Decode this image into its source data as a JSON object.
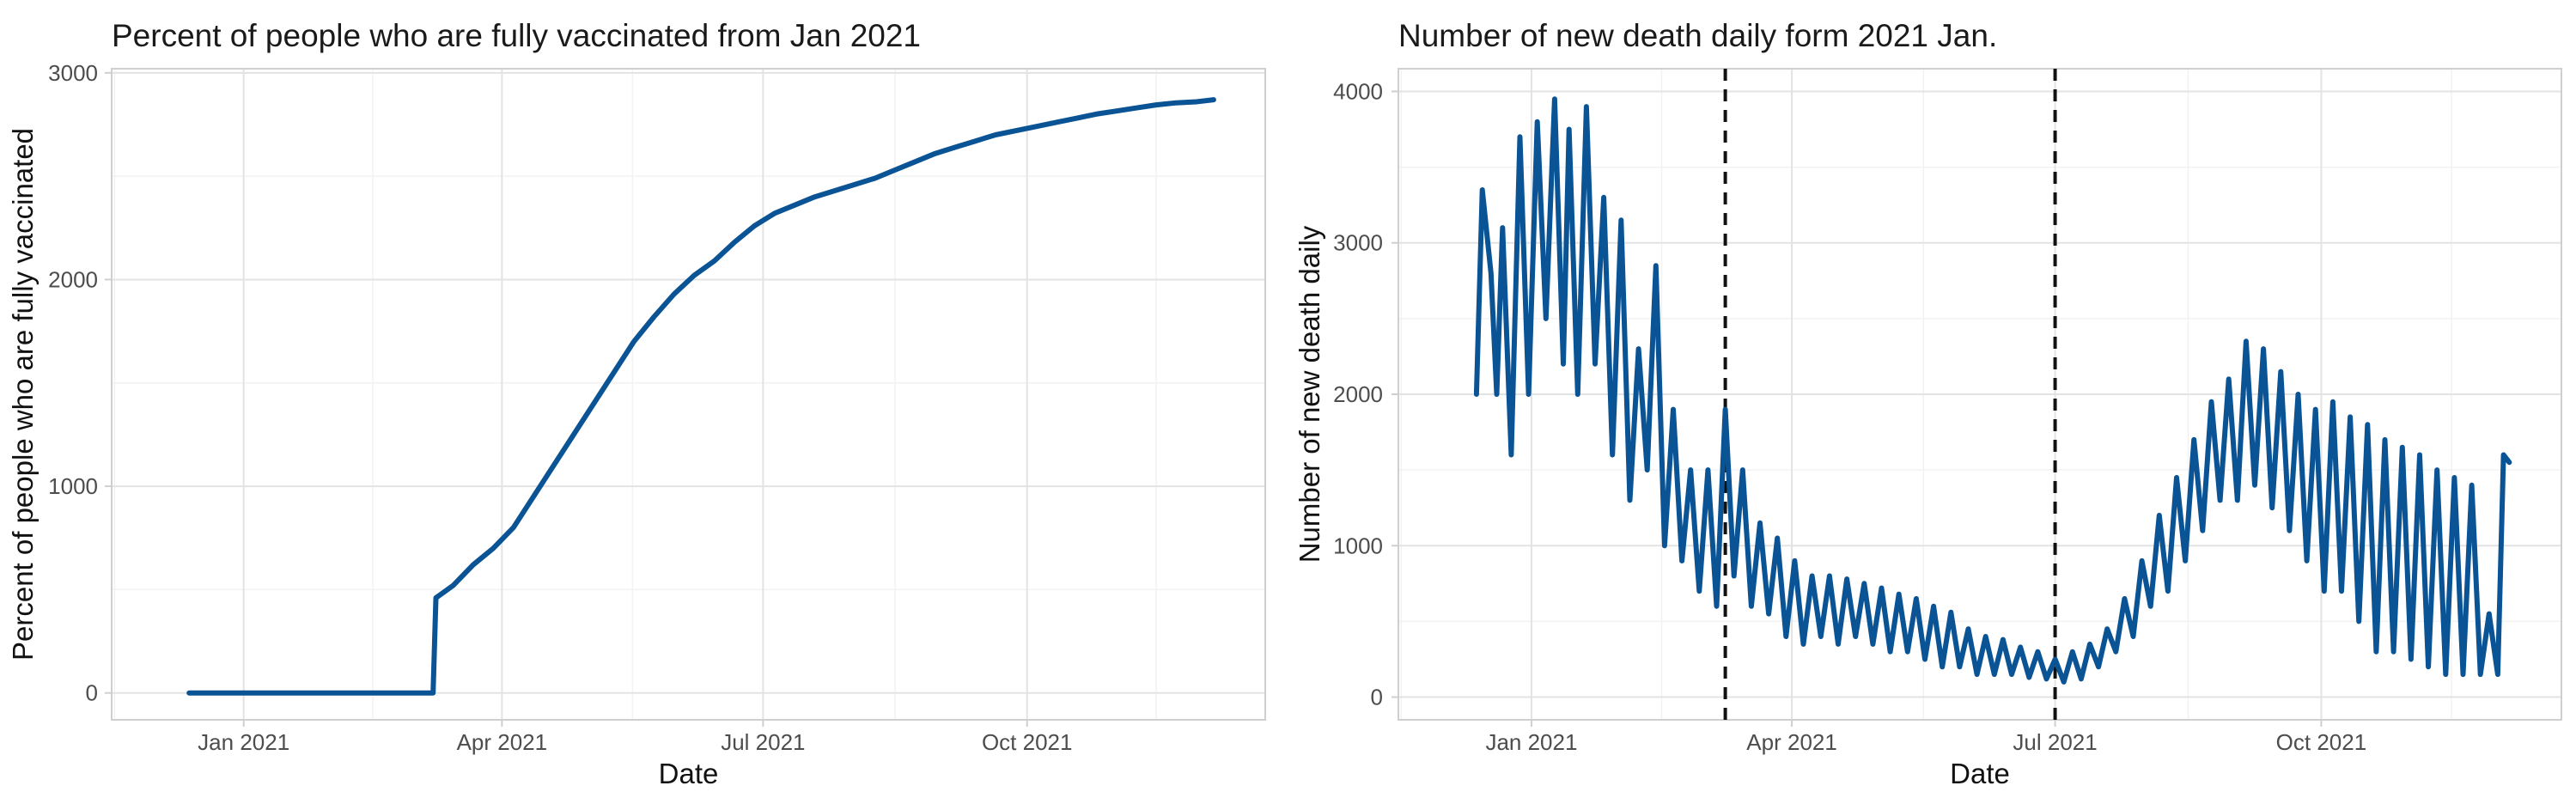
{
  "colors": {
    "series": "#0a5394",
    "vline": "#111111"
  },
  "chart_data": [
    {
      "type": "line",
      "title": "Percent of people who are fully vaccinated from Jan 2021",
      "xlabel": "Date",
      "ylabel": "Percent of people who are fully vaccinated",
      "x_type": "date",
      "xlim": [
        "2020-11-16",
        "2021-12-23"
      ],
      "ylim": [
        -130,
        3020
      ],
      "x_ticks": [
        {
          "date": "2021-01-01",
          "label": "Jan 2021"
        },
        {
          "date": "2021-04-01",
          "label": "Apr 2021"
        },
        {
          "date": "2021-07-01",
          "label": "Jul 2021"
        },
        {
          "date": "2021-10-01",
          "label": "Oct 2021"
        }
      ],
      "y_ticks": [
        0,
        1000,
        2000,
        3000
      ],
      "grid": true,
      "series": [
        {
          "points": [
            [
              "2020-12-13",
              0
            ],
            [
              "2021-01-15",
              0
            ],
            [
              "2021-02-15",
              0
            ],
            [
              "2021-03-08",
              0
            ],
            [
              "2021-03-09",
              460
            ],
            [
              "2021-03-15",
              520
            ],
            [
              "2021-03-22",
              620
            ],
            [
              "2021-03-29",
              700
            ],
            [
              "2021-04-05",
              800
            ],
            [
              "2021-04-12",
              950
            ],
            [
              "2021-04-19",
              1100
            ],
            [
              "2021-04-26",
              1250
            ],
            [
              "2021-05-03",
              1400
            ],
            [
              "2021-05-10",
              1550
            ],
            [
              "2021-05-17",
              1700
            ],
            [
              "2021-05-24",
              1820
            ],
            [
              "2021-05-31",
              1930
            ],
            [
              "2021-06-07",
              2020
            ],
            [
              "2021-06-14",
              2090
            ],
            [
              "2021-06-21",
              2180
            ],
            [
              "2021-06-28",
              2260
            ],
            [
              "2021-07-05",
              2320
            ],
            [
              "2021-07-12",
              2360
            ],
            [
              "2021-07-19",
              2400
            ],
            [
              "2021-07-26",
              2430
            ],
            [
              "2021-08-02",
              2460
            ],
            [
              "2021-08-09",
              2490
            ],
            [
              "2021-08-16",
              2530
            ],
            [
              "2021-08-23",
              2570
            ],
            [
              "2021-08-30",
              2610
            ],
            [
              "2021-09-06",
              2640
            ],
            [
              "2021-09-13",
              2670
            ],
            [
              "2021-09-20",
              2700
            ],
            [
              "2021-09-27",
              2720
            ],
            [
              "2021-10-04",
              2740
            ],
            [
              "2021-10-11",
              2760
            ],
            [
              "2021-10-18",
              2780
            ],
            [
              "2021-10-25",
              2800
            ],
            [
              "2021-11-01",
              2815
            ],
            [
              "2021-11-08",
              2830
            ],
            [
              "2021-11-15",
              2845
            ],
            [
              "2021-11-22",
              2855
            ],
            [
              "2021-11-29",
              2860
            ],
            [
              "2021-12-05",
              2870
            ]
          ]
        }
      ]
    },
    {
      "type": "line",
      "title": "Number of new death daily form 2021 Jan.",
      "xlabel": "Date",
      "ylabel": "Number of new death daily",
      "x_type": "date",
      "xlim": [
        "2020-11-16",
        "2021-12-23"
      ],
      "ylim": [
        -150,
        4150
      ],
      "x_ticks": [
        {
          "date": "2021-01-01",
          "label": "Jan 2021"
        },
        {
          "date": "2021-04-01",
          "label": "Apr 2021"
        },
        {
          "date": "2021-07-01",
          "label": "Jul 2021"
        },
        {
          "date": "2021-10-01",
          "label": "Oct 2021"
        }
      ],
      "y_ticks": [
        0,
        1000,
        2000,
        3000,
        4000
      ],
      "grid": true,
      "vlines": [
        "2021-03-09",
        "2021-07-01"
      ],
      "series": [
        {
          "points": [
            [
              "2020-12-13",
              2000
            ],
            [
              "2020-12-15",
              3350
            ],
            [
              "2020-12-18",
              2800
            ],
            [
              "2020-12-20",
              2000
            ],
            [
              "2020-12-22",
              3100
            ],
            [
              "2020-12-25",
              1600
            ],
            [
              "2020-12-28",
              3700
            ],
            [
              "2020-12-31",
              2000
            ],
            [
              "2021-01-03",
              3800
            ],
            [
              "2021-01-06",
              2500
            ],
            [
              "2021-01-09",
              3950
            ],
            [
              "2021-01-12",
              2200
            ],
            [
              "2021-01-14",
              3750
            ],
            [
              "2021-01-17",
              2000
            ],
            [
              "2021-01-20",
              3900
            ],
            [
              "2021-01-23",
              2200
            ],
            [
              "2021-01-26",
              3300
            ],
            [
              "2021-01-29",
              1600
            ],
            [
              "2021-02-01",
              3150
            ],
            [
              "2021-02-04",
              1300
            ],
            [
              "2021-02-07",
              2300
            ],
            [
              "2021-02-10",
              1500
            ],
            [
              "2021-02-13",
              2850
            ],
            [
              "2021-02-16",
              1000
            ],
            [
              "2021-02-19",
              1900
            ],
            [
              "2021-02-22",
              900
            ],
            [
              "2021-02-25",
              1500
            ],
            [
              "2021-02-28",
              700
            ],
            [
              "2021-03-03",
              1500
            ],
            [
              "2021-03-06",
              600
            ],
            [
              "2021-03-09",
              1900
            ],
            [
              "2021-03-12",
              800
            ],
            [
              "2021-03-15",
              1500
            ],
            [
              "2021-03-18",
              600
            ],
            [
              "2021-03-21",
              1150
            ],
            [
              "2021-03-24",
              550
            ],
            [
              "2021-03-27",
              1050
            ],
            [
              "2021-03-30",
              400
            ],
            [
              "2021-04-02",
              900
            ],
            [
              "2021-04-05",
              350
            ],
            [
              "2021-04-08",
              800
            ],
            [
              "2021-04-11",
              400
            ],
            [
              "2021-04-14",
              800
            ],
            [
              "2021-04-17",
              350
            ],
            [
              "2021-04-20",
              780
            ],
            [
              "2021-04-23",
              400
            ],
            [
              "2021-04-26",
              750
            ],
            [
              "2021-04-29",
              350
            ],
            [
              "2021-05-02",
              720
            ],
            [
              "2021-05-05",
              300
            ],
            [
              "2021-05-08",
              680
            ],
            [
              "2021-05-11",
              300
            ],
            [
              "2021-05-14",
              650
            ],
            [
              "2021-05-17",
              250
            ],
            [
              "2021-05-20",
              600
            ],
            [
              "2021-05-23",
              200
            ],
            [
              "2021-05-26",
              560
            ],
            [
              "2021-05-29",
              200
            ],
            [
              "2021-06-01",
              450
            ],
            [
              "2021-06-04",
              150
            ],
            [
              "2021-06-07",
              400
            ],
            [
              "2021-06-10",
              150
            ],
            [
              "2021-06-13",
              380
            ],
            [
              "2021-06-16",
              150
            ],
            [
              "2021-06-19",
              330
            ],
            [
              "2021-06-22",
              130
            ],
            [
              "2021-06-25",
              300
            ],
            [
              "2021-06-28",
              120
            ],
            [
              "2021-07-01",
              250
            ],
            [
              "2021-07-04",
              100
            ],
            [
              "2021-07-07",
              300
            ],
            [
              "2021-07-10",
              120
            ],
            [
              "2021-07-13",
              350
            ],
            [
              "2021-07-16",
              200
            ],
            [
              "2021-07-19",
              450
            ],
            [
              "2021-07-22",
              300
            ],
            [
              "2021-07-25",
              650
            ],
            [
              "2021-07-28",
              400
            ],
            [
              "2021-07-31",
              900
            ],
            [
              "2021-08-03",
              600
            ],
            [
              "2021-08-06",
              1200
            ],
            [
              "2021-08-09",
              700
            ],
            [
              "2021-08-12",
              1450
            ],
            [
              "2021-08-15",
              900
            ],
            [
              "2021-08-18",
              1700
            ],
            [
              "2021-08-21",
              1100
            ],
            [
              "2021-08-24",
              1950
            ],
            [
              "2021-08-27",
              1300
            ],
            [
              "2021-08-30",
              2100
            ],
            [
              "2021-09-02",
              1300
            ],
            [
              "2021-09-05",
              2350
            ],
            [
              "2021-09-08",
              1400
            ],
            [
              "2021-09-11",
              2300
            ],
            [
              "2021-09-14",
              1250
            ],
            [
              "2021-09-17",
              2150
            ],
            [
              "2021-09-20",
              1100
            ],
            [
              "2021-09-23",
              2000
            ],
            [
              "2021-09-26",
              900
            ],
            [
              "2021-09-29",
              1900
            ],
            [
              "2021-10-02",
              700
            ],
            [
              "2021-10-05",
              1950
            ],
            [
              "2021-10-08",
              700
            ],
            [
              "2021-10-11",
              1850
            ],
            [
              "2021-10-14",
              500
            ],
            [
              "2021-10-17",
              1800
            ],
            [
              "2021-10-20",
              300
            ],
            [
              "2021-10-23",
              1700
            ],
            [
              "2021-10-26",
              300
            ],
            [
              "2021-10-29",
              1650
            ],
            [
              "2021-11-01",
              250
            ],
            [
              "2021-11-04",
              1600
            ],
            [
              "2021-11-07",
              200
            ],
            [
              "2021-11-10",
              1500
            ],
            [
              "2021-11-13",
              150
            ],
            [
              "2021-11-16",
              1450
            ],
            [
              "2021-11-19",
              150
            ],
            [
              "2021-11-22",
              1400
            ],
            [
              "2021-11-25",
              150
            ],
            [
              "2021-11-28",
              550
            ],
            [
              "2021-12-01",
              150
            ],
            [
              "2021-12-03",
              1600
            ],
            [
              "2021-12-05",
              1550
            ]
          ]
        }
      ]
    }
  ]
}
